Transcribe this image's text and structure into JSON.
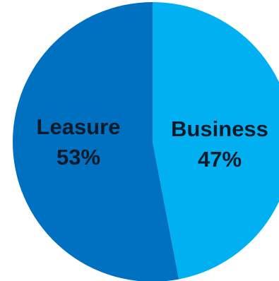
{
  "chart_data": {
    "type": "pie",
    "title": "",
    "slices": [
      {
        "label": "Business",
        "value": 47,
        "value_label": "47%",
        "color": "#00b0f0"
      },
      {
        "label": "Leasure",
        "value": 53,
        "value_label": "53%",
        "color": "#0070c0"
      }
    ],
    "start_angle_deg": 0,
    "direction": "clockwise",
    "legend": "none"
  }
}
